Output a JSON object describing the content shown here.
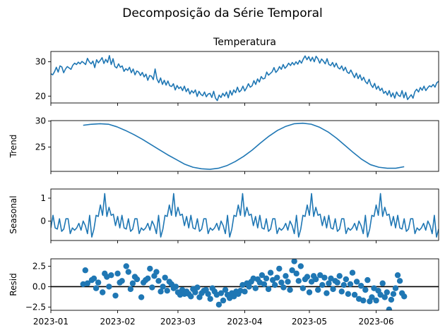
{
  "figure": {
    "suptitle": "Decomposição da Série Temporal"
  },
  "colors": {
    "series": "#1f77b4",
    "axis": "#000000",
    "zero_line": "#000000",
    "background": "#ffffff"
  },
  "x_axis": {
    "start_date": "2023-01-01",
    "end_date": "2023-06-30",
    "tick_labels": [
      "2023-01",
      "2023-02",
      "2023-03",
      "2023-04",
      "2023-05",
      "2023-06"
    ],
    "tick_dates": [
      "2023-01-01",
      "2023-02-01",
      "2023-03-01",
      "2023-04-01",
      "2023-05-01",
      "2023-06-01"
    ]
  },
  "chart_data": [
    {
      "type": "line",
      "title": "Temperatura",
      "ylabel": "",
      "ylim": [
        18,
        33
      ],
      "yticks": [
        20,
        30
      ],
      "ytick_labels": [
        "20",
        "30"
      ],
      "series": [
        {
          "values": [
            26.5,
            26.2,
            27.1,
            28.4,
            27.0,
            28.8,
            28.5,
            26.8,
            27.9,
            28.6,
            28.2,
            27.8,
            29.0,
            29.6,
            29.2,
            29.9,
            29.4,
            30.1,
            29.7,
            29.2,
            31.0,
            30.0,
            29.4,
            30.2,
            28.3,
            30.6,
            29.7,
            30.4,
            31.2,
            29.5,
            30.7,
            29.8,
            31.8,
            29.2,
            30.9,
            28.6,
            28.2,
            29.4,
            28.4,
            28.8,
            27.2,
            28.0,
            27.5,
            28.4,
            26.8,
            27.9,
            26.2,
            27.3,
            27.0,
            26.0,
            26.9,
            25.6,
            26.4,
            24.6,
            26.0,
            25.8,
            24.8,
            27.9,
            25.0,
            23.9,
            25.3,
            23.4,
            24.6,
            23.2,
            24.4,
            23.0,
            22.8,
            23.6,
            21.8,
            23.1,
            22.2,
            22.7,
            21.6,
            22.9,
            21.3,
            22.2,
            20.6,
            21.6,
            20.9,
            21.8,
            19.9,
            21.4,
            20.5,
            20.1,
            21.2,
            19.8,
            20.6,
            20.8,
            19.6,
            21.4,
            19.4,
            18.7,
            20.3,
            19.6,
            20.8,
            20.0,
            21.2,
            19.5,
            21.6,
            20.3,
            21.8,
            21.0,
            22.6,
            21.2,
            21.7,
            22.9,
            21.5,
            22.4,
            23.6,
            22.6,
            23.0,
            24.5,
            23.4,
            25.0,
            24.1,
            25.7,
            25.0,
            25.2,
            27.0,
            26.1,
            26.6,
            27.1,
            28.3,
            26.9,
            27.5,
            28.6,
            27.8,
            29.2,
            28.1,
            28.7,
            29.6,
            28.9,
            29.8,
            29.1,
            30.0,
            29.3,
            30.4,
            29.6,
            30.8,
            31.7,
            30.6,
            31.5,
            30.2,
            31.3,
            30.0,
            31.6,
            30.9,
            29.6,
            30.8,
            30.2,
            29.4,
            30.9,
            29.2,
            28.9,
            29.8,
            28.5,
            29.6,
            28.3,
            27.9,
            28.8,
            27.4,
            28.4,
            27.0,
            26.6,
            27.6,
            26.5,
            25.4,
            26.7,
            25.1,
            26.2,
            24.6,
            25.5,
            24.2,
            23.6,
            24.9,
            23.3,
            22.5,
            23.7,
            22.0,
            22.9,
            21.6,
            22.3,
            20.8,
            21.4,
            20.3,
            21.6,
            19.8,
            20.9,
            19.4,
            21.2,
            20.2,
            19.9,
            21.6,
            19.5,
            21.1,
            19.0,
            19.7,
            20.4,
            19.4,
            21.3,
            22.0,
            21.2,
            22.5,
            21.7,
            22.9,
            21.6,
            22.4,
            23.0,
            22.7,
            23.4,
            22.6,
            23.9,
            24.3
          ]
        }
      ]
    },
    {
      "type": "line",
      "title": "",
      "ylabel": "Trend",
      "ylim": [
        20.3,
        30.1
      ],
      "yticks": [
        25,
        30
      ],
      "ytick_labels": [
        "25",
        "30"
      ],
      "x_range": [
        "2023-01-16",
        "2023-06-14"
      ],
      "series": [
        {
          "values": [
            29.2,
            29.4,
            29.5,
            29.4,
            28.9,
            28.2,
            27.4,
            26.5,
            25.5,
            24.5,
            23.5,
            22.6,
            21.7,
            21.1,
            20.8,
            20.7,
            20.9,
            21.4,
            22.2,
            23.2,
            24.4,
            25.8,
            27.1,
            28.2,
            29.0,
            29.5,
            29.6,
            29.4,
            28.8,
            27.9,
            26.7,
            25.3,
            23.9,
            22.6,
            21.6,
            21.1,
            20.9,
            20.9,
            21.2
          ]
        }
      ]
    },
    {
      "type": "line",
      "title": "",
      "ylabel": "Seasonal",
      "ylim": [
        -0.85,
        1.4
      ],
      "yticks": [
        0,
        1
      ],
      "ytick_labels": [
        "0",
        "1"
      ],
      "series": [
        {
          "values": [
            -0.3,
            0.25,
            -0.3,
            -0.35,
            0.1,
            -0.45,
            -0.35,
            0.1,
            0.1,
            -0.55,
            -0.3,
            -0.4,
            -0.3,
            -0.1,
            -0.4,
            0.0,
            -0.2,
            -0.55,
            0.25,
            -0.7,
            -0.35,
            0.25,
            0.2,
            0.7,
            0.25,
            1.2,
            0.2,
            0.6,
            0.25,
            0.3,
            -0.2,
            0.2
          ]
        }
      ]
    },
    {
      "type": "scatter",
      "title": "",
      "ylabel": "Resid",
      "ylim": [
        -2.9,
        3.4
      ],
      "yticks": [
        2.5,
        0.0,
        -2.5
      ],
      "ytick_labels": [
        "2.5",
        "0.0",
        "−2.5"
      ],
      "zero_line": 0.0,
      "series": [
        {
          "points": [
            [
              "2023-01-16",
              0.3
            ],
            [
              "2023-01-17",
              2.0
            ],
            [
              "2023-01-18",
              0.4
            ],
            [
              "2023-01-20",
              0.8
            ],
            [
              "2023-01-21",
              1.0
            ],
            [
              "2023-01-22",
              -0.2
            ],
            [
              "2023-01-23",
              0.5
            ],
            [
              "2023-01-25",
              -0.7
            ],
            [
              "2023-01-26",
              1.6
            ],
            [
              "2023-01-27",
              1.2
            ],
            [
              "2023-01-28",
              0.0
            ],
            [
              "2023-01-29",
              1.4
            ],
            [
              "2023-01-31",
              -1.1
            ],
            [
              "2023-02-01",
              1.6
            ],
            [
              "2023-02-02",
              0.5
            ],
            [
              "2023-02-03",
              0.7
            ],
            [
              "2023-02-05",
              2.5
            ],
            [
              "2023-02-06",
              1.8
            ],
            [
              "2023-02-07",
              -0.3
            ],
            [
              "2023-02-08",
              0.4
            ],
            [
              "2023-02-09",
              1.2
            ],
            [
              "2023-02-10",
              0.9
            ],
            [
              "2023-02-12",
              -1.3
            ],
            [
              "2023-02-13",
              0.5
            ],
            [
              "2023-02-14",
              0.8
            ],
            [
              "2023-02-15",
              1.0
            ],
            [
              "2023-02-16",
              2.2
            ],
            [
              "2023-02-17",
              -0.1
            ],
            [
              "2023-02-18",
              1.3
            ],
            [
              "2023-02-19",
              1.8
            ],
            [
              "2023-02-20",
              0.7
            ],
            [
              "2023-02-21",
              -0.6
            ],
            [
              "2023-02-22",
              0.0
            ],
            [
              "2023-02-23",
              1.1
            ],
            [
              "2023-02-24",
              -0.5
            ],
            [
              "2023-02-25",
              0.6
            ],
            [
              "2023-02-26",
              0.3
            ],
            [
              "2023-02-27",
              -0.2
            ],
            [
              "2023-02-28",
              0.0
            ],
            [
              "2023-03-01",
              -0.7
            ],
            [
              "2023-03-02",
              -1.0
            ],
            [
              "2023-03-03",
              -0.4
            ],
            [
              "2023-03-04",
              -0.9
            ],
            [
              "2023-03-05",
              -0.6
            ],
            [
              "2023-03-06",
              -0.9
            ],
            [
              "2023-03-07",
              -1.2
            ],
            [
              "2023-03-08",
              -0.3
            ],
            [
              "2023-03-09",
              -0.7
            ],
            [
              "2023-03-10",
              -0.1
            ],
            [
              "2023-03-11",
              -1.3
            ],
            [
              "2023-03-12",
              -0.8
            ],
            [
              "2023-03-13",
              -0.5
            ],
            [
              "2023-03-14",
              -0.4
            ],
            [
              "2023-03-15",
              -0.9
            ],
            [
              "2023-03-16",
              -1.5
            ],
            [
              "2023-03-17",
              -0.2
            ],
            [
              "2023-03-18",
              -0.6
            ],
            [
              "2023-03-19",
              -1.0
            ],
            [
              "2023-03-20",
              -2.2
            ],
            [
              "2023-03-21",
              -0.8
            ],
            [
              "2023-03-22",
              -1.7
            ],
            [
              "2023-03-23",
              -0.4
            ],
            [
              "2023-03-24",
              -1.0
            ],
            [
              "2023-03-25",
              -1.4
            ],
            [
              "2023-03-26",
              -0.8
            ],
            [
              "2023-03-27",
              -1.2
            ],
            [
              "2023-03-28",
              -0.6
            ],
            [
              "2023-03-29",
              -0.9
            ],
            [
              "2023-03-30",
              -0.5
            ],
            [
              "2023-03-31",
              0.2
            ],
            [
              "2023-04-01",
              -0.6
            ],
            [
              "2023-04-02",
              0.4
            ],
            [
              "2023-04-03",
              0.0
            ],
            [
              "2023-04-04",
              0.6
            ],
            [
              "2023-04-05",
              1.0
            ],
            [
              "2023-04-06",
              -0.2
            ],
            [
              "2023-04-07",
              0.9
            ],
            [
              "2023-04-08",
              0.5
            ],
            [
              "2023-04-09",
              1.4
            ],
            [
              "2023-04-10",
              0.3
            ],
            [
              "2023-04-11",
              1.0
            ],
            [
              "2023-04-12",
              -0.3
            ],
            [
              "2023-04-13",
              1.7
            ],
            [
              "2023-04-14",
              0.8
            ],
            [
              "2023-04-15",
              0.2
            ],
            [
              "2023-04-16",
              1.1
            ],
            [
              "2023-04-17",
              2.2
            ],
            [
              "2023-04-18",
              0.5
            ],
            [
              "2023-04-19",
              -0.1
            ],
            [
              "2023-04-20",
              1.3
            ],
            [
              "2023-04-21",
              0.6
            ],
            [
              "2023-04-22",
              -0.4
            ],
            [
              "2023-04-23",
              2.0
            ],
            [
              "2023-04-24",
              3.1
            ],
            [
              "2023-04-25",
              1.6
            ],
            [
              "2023-04-26",
              0.7
            ],
            [
              "2023-04-27",
              2.5
            ],
            [
              "2023-04-28",
              -0.2
            ],
            [
              "2023-04-29",
              0.9
            ],
            [
              "2023-04-30",
              1.2
            ],
            [
              "2023-05-01",
              -0.7
            ],
            [
              "2023-05-02",
              0.6
            ],
            [
              "2023-05-03",
              1.3
            ],
            [
              "2023-05-04",
              0.9
            ],
            [
              "2023-05-05",
              -0.4
            ],
            [
              "2023-05-06",
              1.4
            ],
            [
              "2023-05-07",
              0.2
            ],
            [
              "2023-05-08",
              1.1
            ],
            [
              "2023-05-09",
              -0.8
            ],
            [
              "2023-05-10",
              0.4
            ],
            [
              "2023-05-11",
              1.0
            ],
            [
              "2023-05-12",
              -0.3
            ],
            [
              "2023-05-13",
              0.7
            ],
            [
              "2023-05-14",
              0.5
            ],
            [
              "2023-05-15",
              1.3
            ],
            [
              "2023-05-16",
              -0.6
            ],
            [
              "2023-05-17",
              0.2
            ],
            [
              "2023-05-18",
              0.9
            ],
            [
              "2023-05-19",
              -0.9
            ],
            [
              "2023-05-20",
              0.3
            ],
            [
              "2023-05-21",
              1.7
            ],
            [
              "2023-05-22",
              -1.0
            ],
            [
              "2023-05-23",
              0.6
            ],
            [
              "2023-05-24",
              -1.5
            ],
            [
              "2023-05-25",
              0.1
            ],
            [
              "2023-05-26",
              -1.7
            ],
            [
              "2023-05-27",
              -0.4
            ],
            [
              "2023-05-28",
              0.8
            ],
            [
              "2023-05-29",
              -1.8
            ],
            [
              "2023-05-30",
              -1.3
            ],
            [
              "2023-05-31",
              -0.2
            ],
            [
              "2023-06-01",
              -1.7
            ],
            [
              "2023-06-02",
              -0.5
            ],
            [
              "2023-06-03",
              -1.0
            ],
            [
              "2023-06-04",
              0.4
            ],
            [
              "2023-06-05",
              -1.3
            ],
            [
              "2023-06-06",
              -0.7
            ],
            [
              "2023-06-07",
              -2.8
            ],
            [
              "2023-06-08",
              -1.6
            ],
            [
              "2023-06-09",
              -0.9
            ],
            [
              "2023-06-10",
              -0.2
            ],
            [
              "2023-06-11",
              1.4
            ],
            [
              "2023-06-12",
              0.7
            ],
            [
              "2023-06-13",
              -0.8
            ],
            [
              "2023-06-14",
              -1.2
            ]
          ]
        }
      ]
    }
  ]
}
